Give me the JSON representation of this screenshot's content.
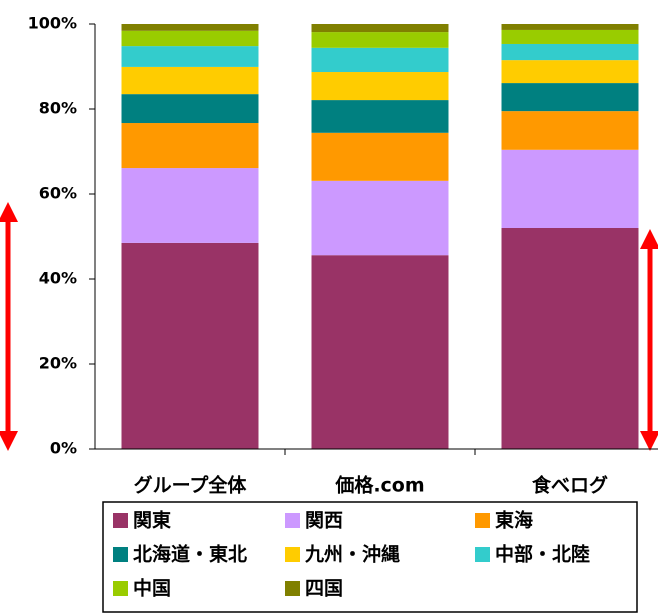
{
  "chart_data": {
    "type": "stacked_bar",
    "categories": [
      "グループ全体",
      "価格.com",
      "食べログ"
    ],
    "series": [
      {
        "name": "関東",
        "color": "#993366",
        "values": [
          48.5,
          45.6,
          52.0
        ]
      },
      {
        "name": "関西",
        "color": "#cc99ff",
        "values": [
          17.6,
          17.5,
          18.4
        ]
      },
      {
        "name": "東海",
        "color": "#ff9900",
        "values": [
          10.6,
          11.3,
          9.1
        ]
      },
      {
        "name": "北海道・東北",
        "color": "#008080",
        "values": [
          6.8,
          7.7,
          6.6
        ]
      },
      {
        "name": "九州・沖縄",
        "color": "#ffcc00",
        "values": [
          6.4,
          6.6,
          5.4
        ]
      },
      {
        "name": "中部・北陸",
        "color": "#33cccc",
        "values": [
          4.9,
          5.7,
          3.8
        ]
      },
      {
        "name": "中国",
        "color": "#99cc00",
        "values": [
          3.6,
          3.7,
          3.3
        ]
      },
      {
        "name": "四国",
        "color": "#808000",
        "values": [
          1.6,
          1.9,
          1.4
        ]
      }
    ],
    "ylim": [
      0,
      100
    ],
    "yticks": [
      {
        "value": 0,
        "label": "0%"
      },
      {
        "value": 20,
        "label": "20%"
      },
      {
        "value": 40,
        "label": "40%"
      },
      {
        "value": 60,
        "label": "60%"
      },
      {
        "value": 80,
        "label": "80%"
      },
      {
        "value": 100,
        "label": "100%"
      }
    ],
    "legend": "bottom"
  }
}
